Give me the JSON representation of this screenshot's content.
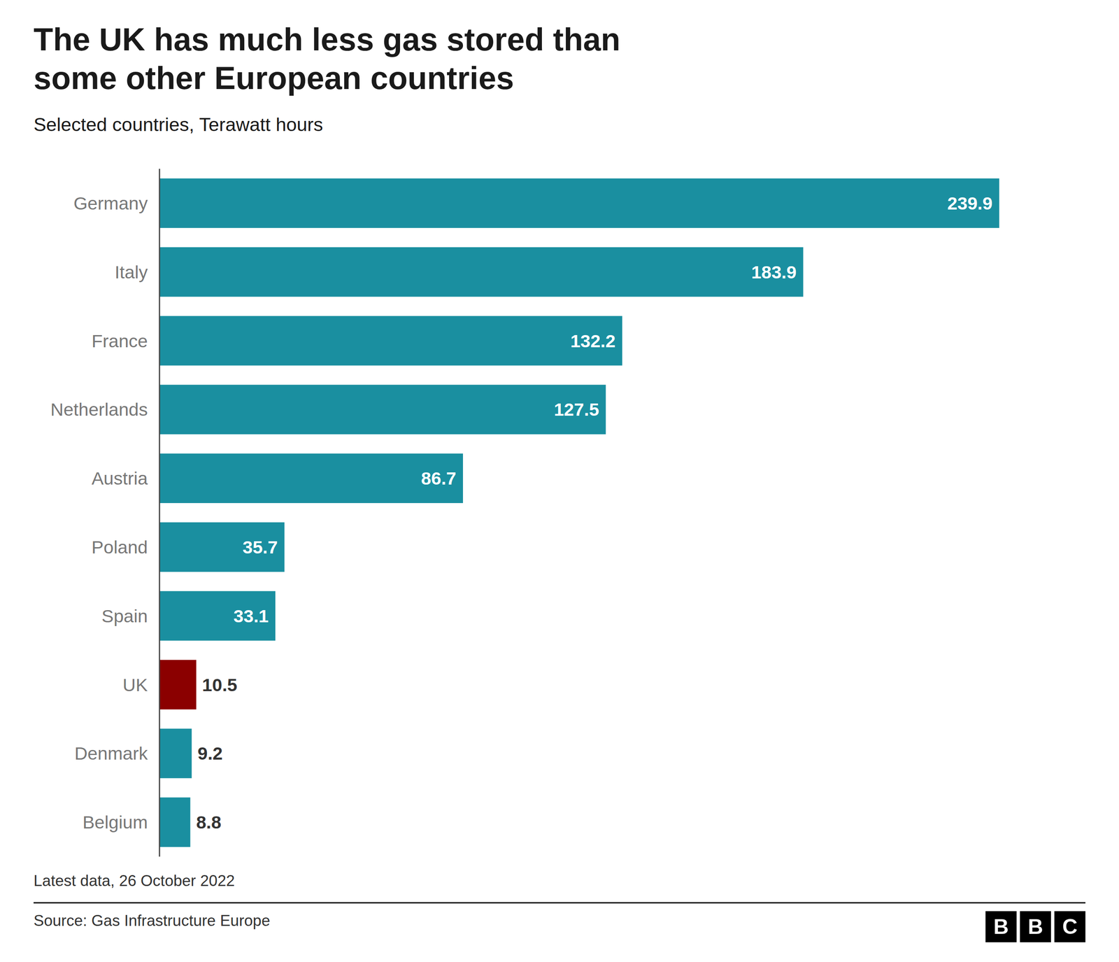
{
  "chart_data": {
    "type": "bar",
    "orientation": "horizontal",
    "title": "The UK has much less gas stored than\nsome other European countries",
    "subtitle": "Selected countries, Terawatt hours",
    "categories": [
      "Germany",
      "Italy",
      "France",
      "Netherlands",
      "Austria",
      "Poland",
      "Spain",
      "UK",
      "Denmark",
      "Belgium"
    ],
    "values": [
      239.9,
      183.9,
      132.2,
      127.5,
      86.7,
      35.7,
      33.1,
      10.5,
      9.2,
      8.8
    ],
    "colors": [
      "#1a8fa0",
      "#1a8fa0",
      "#1a8fa0",
      "#1a8fa0",
      "#1a8fa0",
      "#1a8fa0",
      "#1a8fa0",
      "#8B0000",
      "#1a8fa0",
      "#1a8fa0"
    ],
    "xlim": [
      0,
      265
    ],
    "data_labels": true,
    "tick_labels": "y",
    "grid": false,
    "annotations": [
      "Latest data, 26 October 2022",
      "Source: Gas Infrastructure Europe",
      "BBC"
    ]
  }
}
